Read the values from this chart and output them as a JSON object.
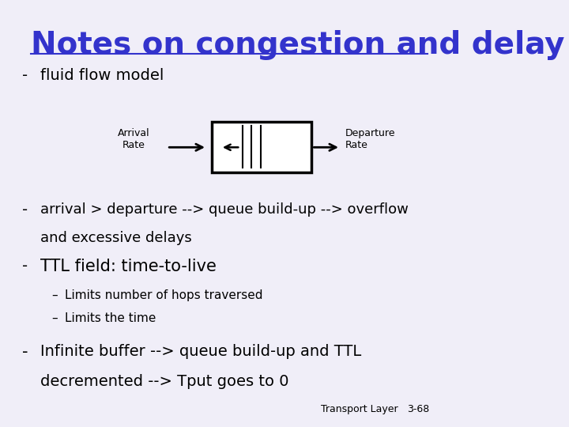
{
  "background_color": "#f0eef8",
  "title": "Notes on congestion and delay",
  "title_color": "#3333cc",
  "title_fontsize": 28,
  "bullet1": "fluid flow model",
  "bullet2_line1": "arrival > departure --> queue build-up --> overflow",
  "bullet2_line2": "and excessive delays",
  "bullet3": "TTL field: time-to-live",
  "sub_bullet1": "Limits number of hops traversed",
  "sub_bullet2": "Limits the time",
  "bullet4_line1": "Infinite buffer --> queue build-up and TTL",
  "bullet4_line2": "decremented --> Tput goes to 0",
  "footer_left": "Transport Layer",
  "footer_right": "3-68",
  "arrival_label": "Arrival\nRate",
  "departure_label": "Departure\nRate",
  "text_color": "#000000",
  "body_fontsize": 13,
  "sub_fontsize": 11
}
